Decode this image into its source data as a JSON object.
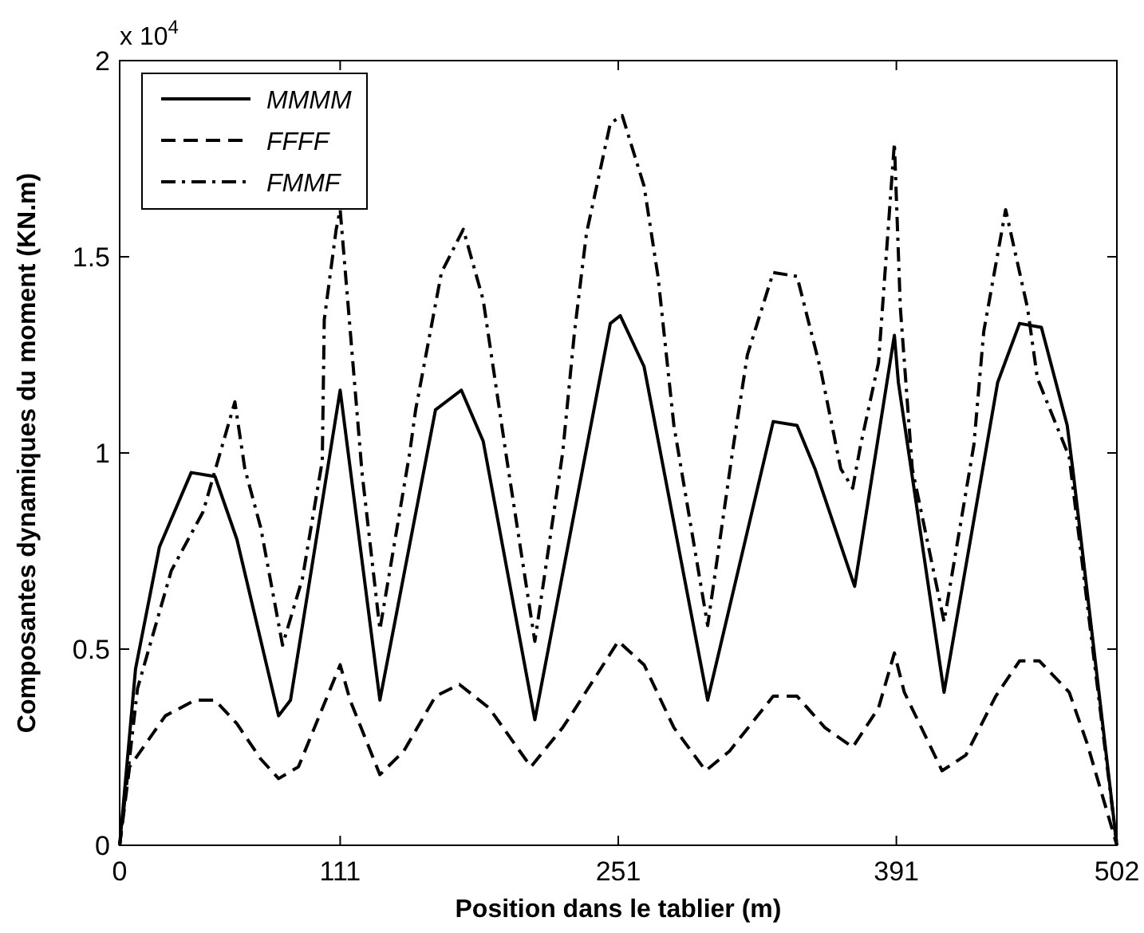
{
  "chart_data": {
    "type": "line",
    "xlabel": "Position dans le tablier (m)",
    "ylabel": "Composantes dynamiques du moment (KN.m)",
    "annotations": [
      "x 10$^{4}$"
    ],
    "xlim": [
      0,
      502
    ],
    "xticks": [
      0,
      111,
      251,
      391,
      502
    ],
    "ylim": [
      0,
      2
    ],
    "yticks": [
      0,
      0.5,
      1,
      1.5,
      2
    ],
    "grid": false,
    "legend": "top left",
    "series": [
      {
        "name": "MMMM",
        "color": "#000000",
        "line_style": "solid",
        "x": [
          0,
          8,
          20,
          36,
          48,
          59,
          80,
          86,
          111,
          131,
          159,
          172,
          183,
          209,
          247,
          252,
          264,
          296,
          329,
          341,
          350,
          370,
          390,
          392,
          415,
          442,
          453,
          464,
          477,
          480,
          502
        ],
        "values": [
          0,
          0.45,
          0.76,
          0.95,
          0.94,
          0.78,
          0.33,
          0.37,
          1.16,
          0.37,
          1.11,
          1.16,
          1.03,
          0.32,
          1.33,
          1.35,
          1.22,
          0.37,
          1.08,
          1.07,
          0.96,
          0.66,
          1.3,
          1.18,
          0.39,
          1.18,
          1.33,
          1.32,
          1.07,
          0.95,
          0
        ]
      },
      {
        "name": "FFFF",
        "color": "#000000",
        "line_style": "dashed",
        "x": [
          0,
          5,
          23,
          38,
          48,
          59,
          71,
          80,
          90,
          111,
          116,
          131,
          143,
          159,
          171,
          186,
          207,
          223,
          227,
          251,
          264,
          279,
          295,
          307,
          329,
          341,
          355,
          369,
          382,
          390,
          395,
          414,
          426,
          441,
          453,
          463,
          478,
          487,
          502
        ],
        "values": [
          0,
          0.2,
          0.33,
          0.37,
          0.37,
          0.31,
          0.22,
          0.17,
          0.2,
          0.46,
          0.37,
          0.18,
          0.24,
          0.38,
          0.41,
          0.35,
          0.2,
          0.3,
          0.33,
          0.52,
          0.46,
          0.3,
          0.19,
          0.24,
          0.38,
          0.38,
          0.3,
          0.25,
          0.35,
          0.49,
          0.39,
          0.19,
          0.23,
          0.38,
          0.47,
          0.47,
          0.39,
          0.26,
          0
        ]
      },
      {
        "name": "FMMF",
        "color": "#000000",
        "line_style": "dashdot",
        "x": [
          0,
          9,
          26,
          42,
          58,
          63,
          71,
          82,
          92,
          102,
          103,
          109,
          111,
          122,
          131,
          146,
          149,
          162,
          173,
          183,
          195,
          209,
          223,
          229,
          235,
          247,
          253,
          264,
          271,
          279,
          296,
          309,
          316,
          329,
          341,
          353,
          363,
          369,
          373,
          382,
          390,
          393,
          399,
          415,
          430,
          435,
          446,
          457,
          462,
          478,
          502
        ],
        "values": [
          0,
          0.4,
          0.7,
          0.85,
          1.13,
          0.96,
          0.81,
          0.51,
          0.68,
          0.98,
          1.34,
          1.57,
          1.62,
          0.95,
          0.55,
          1.0,
          1.11,
          1.46,
          1.57,
          1.39,
          0.98,
          0.52,
          1.0,
          1.31,
          1.56,
          1.84,
          1.86,
          1.68,
          1.45,
          1.07,
          0.56,
          1.02,
          1.25,
          1.46,
          1.45,
          1.21,
          0.96,
          0.91,
          1.02,
          1.23,
          1.79,
          1.37,
          0.96,
          0.57,
          1.02,
          1.31,
          1.62,
          1.37,
          1.19,
          0.99,
          0
        ]
      }
    ]
  }
}
